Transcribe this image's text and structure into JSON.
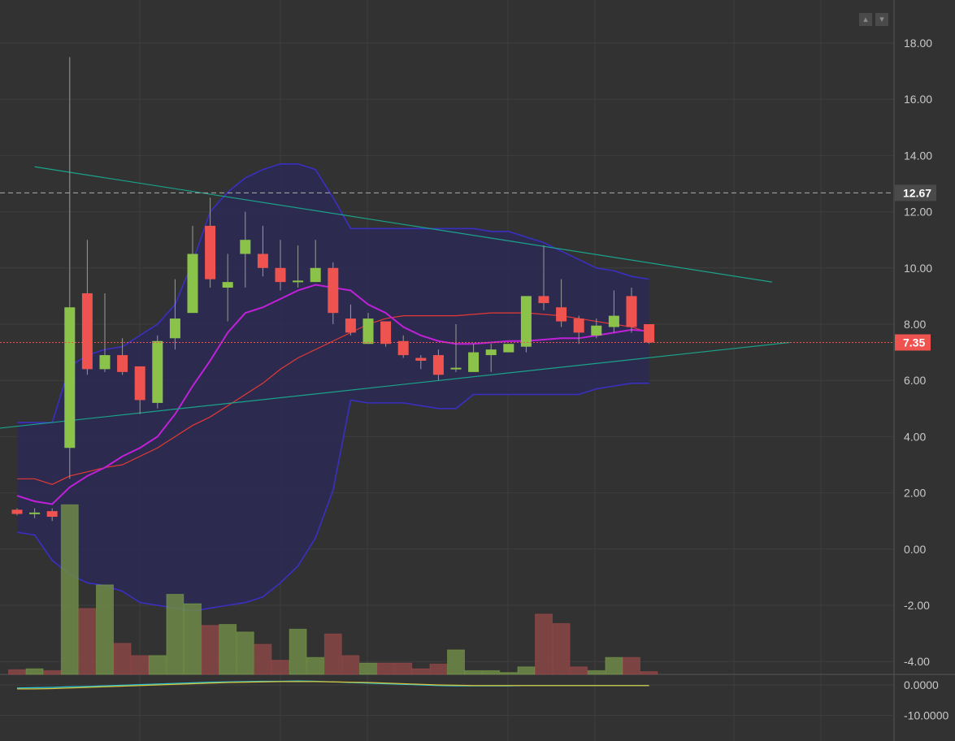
{
  "colors": {
    "background": "#323232",
    "grid": "#3e3e3e",
    "up_candle": "#8bc34a",
    "down_candle": "#ef5350",
    "bollinger_band": "#3a2fc0",
    "bollinger_fill": "#2c2a55",
    "ma_fast": "#c020d8",
    "ma_slow": "#e53935",
    "trendline": "#1aa38a",
    "ref_line": "#9e9e9e",
    "price_tag": "#ef5350",
    "ref_tag": "#e0e0e0"
  },
  "toolbar": {
    "btn1_icon": "up-arrow-icon",
    "btn2_icon": "down-arrow-icon"
  },
  "chart_data": {
    "type": "candlestick",
    "ylim": [
      -4.6,
      19.5
    ],
    "yticks": [
      "18.00",
      "16.00",
      "14.00",
      "12.00",
      "10.00",
      "8.00",
      "6.00",
      "4.00",
      "2.00",
      "0.00",
      "-2.00",
      "-4.00"
    ],
    "ytick_values": [
      18,
      16,
      14,
      12,
      10,
      8,
      6,
      4,
      2,
      0,
      -2,
      -4
    ],
    "reference_line": {
      "value": 12.67,
      "label": "12.67"
    },
    "last_price": {
      "value": 7.35,
      "label": "7.35"
    },
    "candles": [
      {
        "o": 1.4,
        "h": 1.45,
        "l": 1.2,
        "c": 1.25
      },
      {
        "o": 1.25,
        "h": 1.45,
        "l": 1.1,
        "c": 1.3
      },
      {
        "o": 1.35,
        "h": 1.45,
        "l": 1.0,
        "c": 1.15
      },
      {
        "o": 3.6,
        "h": 17.5,
        "l": 2.5,
        "c": 8.6
      },
      {
        "o": 9.1,
        "h": 11.0,
        "l": 6.2,
        "c": 6.4
      },
      {
        "o": 6.4,
        "h": 9.1,
        "l": 6.3,
        "c": 6.9
      },
      {
        "o": 6.9,
        "h": 7.5,
        "l": 6.2,
        "c": 6.3
      },
      {
        "o": 6.5,
        "h": 6.5,
        "l": 4.8,
        "c": 5.3
      },
      {
        "o": 5.2,
        "h": 7.6,
        "l": 5.0,
        "c": 7.4
      },
      {
        "o": 7.5,
        "h": 9.6,
        "l": 7.1,
        "c": 8.2
      },
      {
        "o": 8.4,
        "h": 11.5,
        "l": 8.4,
        "c": 10.5
      },
      {
        "o": 11.5,
        "h": 12.5,
        "l": 9.3,
        "c": 9.6
      },
      {
        "o": 9.3,
        "h": 10.5,
        "l": 8.1,
        "c": 9.5
      },
      {
        "o": 10.5,
        "h": 12.0,
        "l": 9.3,
        "c": 11.0
      },
      {
        "o": 10.5,
        "h": 11.5,
        "l": 9.7,
        "c": 10.0
      },
      {
        "o": 10.0,
        "h": 11.0,
        "l": 9.2,
        "c": 9.5
      },
      {
        "o": 9.5,
        "h": 10.8,
        "l": 9.3,
        "c": 9.55
      },
      {
        "o": 9.5,
        "h": 11.0,
        "l": 9.5,
        "c": 10.0
      },
      {
        "o": 10.0,
        "h": 10.2,
        "l": 8.0,
        "c": 8.4
      },
      {
        "o": 8.2,
        "h": 8.7,
        "l": 7.6,
        "c": 7.7
      },
      {
        "o": 7.3,
        "h": 8.4,
        "l": 7.3,
        "c": 8.2
      },
      {
        "o": 8.1,
        "h": 8.1,
        "l": 7.2,
        "c": 7.3
      },
      {
        "o": 7.4,
        "h": 7.6,
        "l": 6.8,
        "c": 6.9
      },
      {
        "o": 6.8,
        "h": 6.9,
        "l": 6.4,
        "c": 6.7
      },
      {
        "o": 6.9,
        "h": 7.1,
        "l": 6.0,
        "c": 6.2
      },
      {
        "o": 6.4,
        "h": 8.0,
        "l": 6.3,
        "c": 6.45
      },
      {
        "o": 6.3,
        "h": 7.3,
        "l": 6.3,
        "c": 7.0
      },
      {
        "o": 6.9,
        "h": 7.3,
        "l": 6.3,
        "c": 7.1
      },
      {
        "o": 7.0,
        "h": 7.3,
        "l": 7.0,
        "c": 7.3
      },
      {
        "o": 7.2,
        "h": 9.0,
        "l": 7.0,
        "c": 9.0
      },
      {
        "o": 9.0,
        "h": 10.8,
        "l": 8.5,
        "c": 8.75
      },
      {
        "o": 8.6,
        "h": 9.6,
        "l": 7.9,
        "c": 8.1
      },
      {
        "o": 8.2,
        "h": 8.3,
        "l": 7.3,
        "c": 7.7
      },
      {
        "o": 7.6,
        "h": 8.2,
        "l": 7.5,
        "c": 7.95
      },
      {
        "o": 7.9,
        "h": 9.2,
        "l": 7.7,
        "c": 8.3
      },
      {
        "o": 9.0,
        "h": 9.3,
        "l": 7.7,
        "c": 7.9
      },
      {
        "o": 8.0,
        "h": 8.0,
        "l": 7.3,
        "c": 7.35
      }
    ],
    "volume": [
      0.5,
      0.6,
      0.4,
      18,
      7,
      9.5,
      3.3,
      2.0,
      2.0,
      8.5,
      7.5,
      5.2,
      5.3,
      4.5,
      3.2,
      1.5,
      4.8,
      1.8,
      4.3,
      2.0,
      1.2,
      1.2,
      1.2,
      0.6,
      1.1,
      2.6,
      0.4,
      0.4,
      0.2,
      0.8,
      6.4,
      5.4,
      0.8,
      0.4,
      1.8,
      1.8,
      0.3
    ],
    "bb_upper": [
      4.5,
      4.5,
      4.5,
      6.5,
      6.9,
      7.1,
      7.2,
      7.6,
      8.0,
      8.7,
      10.2,
      12.0,
      12.7,
      13.2,
      13.5,
      13.7,
      13.7,
      13.5,
      12.5,
      11.4,
      11.4,
      11.4,
      11.4,
      11.4,
      11.4,
      11.4,
      11.4,
      11.3,
      11.3,
      11.1,
      10.9,
      10.6,
      10.3,
      10.0,
      9.9,
      9.7,
      9.6
    ],
    "bb_lower": [
      0.6,
      0.5,
      -0.4,
      -0.9,
      -1.2,
      -1.3,
      -1.5,
      -1.9,
      -2.0,
      -2.1,
      -2.2,
      -2.1,
      -2.0,
      -1.9,
      -1.7,
      -1.2,
      -0.6,
      0.4,
      2.1,
      5.3,
      5.2,
      5.2,
      5.2,
      5.1,
      5.0,
      5.0,
      5.5,
      5.5,
      5.5,
      5.5,
      5.5,
      5.5,
      5.5,
      5.7,
      5.8,
      5.9,
      5.9
    ],
    "ma_fast": [
      1.9,
      1.7,
      1.6,
      2.2,
      2.6,
      2.9,
      3.3,
      3.6,
      4.0,
      4.8,
      5.8,
      6.7,
      7.7,
      8.4,
      8.6,
      8.9,
      9.2,
      9.4,
      9.3,
      9.2,
      8.7,
      8.4,
      7.9,
      7.6,
      7.4,
      7.3,
      7.3,
      7.35,
      7.4,
      7.4,
      7.45,
      7.5,
      7.5,
      7.6,
      7.7,
      7.8,
      7.75
    ],
    "ma_slow": [
      2.5,
      2.5,
      2.3,
      2.6,
      2.75,
      2.9,
      3.0,
      3.3,
      3.6,
      4.0,
      4.4,
      4.7,
      5.1,
      5.5,
      5.9,
      6.4,
      6.8,
      7.1,
      7.4,
      7.7,
      8.0,
      8.2,
      8.3,
      8.3,
      8.3,
      8.3,
      8.35,
      8.4,
      8.4,
      8.4,
      8.35,
      8.3,
      8.2,
      8.1,
      8.0,
      7.9,
      7.7
    ],
    "trendlines": [
      {
        "from": [
          1,
          13.6
        ],
        "to": [
          43,
          9.5
        ]
      },
      {
        "from": [
          -1,
          4.3
        ],
        "to": [
          44,
          7.35
        ]
      }
    ],
    "oscillator": {
      "yticks": [
        "0.0000",
        "-10.0000"
      ],
      "ytick_values": [
        0,
        -10
      ],
      "ylim": [
        -14,
        3
      ],
      "line1": [
        -1.0,
        -0.9,
        -0.8,
        -0.6,
        -0.5,
        -0.3,
        -0.1,
        0.1,
        0.3,
        0.5,
        0.7,
        0.9,
        1.0,
        1.1,
        1.2,
        1.2,
        1.3,
        1.2,
        1.0,
        0.8,
        0.6,
        0.4,
        0.2,
        0.0,
        -0.2,
        -0.3,
        -0.3,
        -0.3,
        -0.3,
        -0.2,
        -0.2,
        -0.2,
        -0.2,
        -0.2,
        -0.2,
        -0.2,
        -0.2
      ],
      "line2": [
        -1.3,
        -1.3,
        -1.2,
        -1.0,
        -0.8,
        -0.6,
        -0.4,
        -0.2,
        0.0,
        0.2,
        0.4,
        0.6,
        0.8,
        0.9,
        1.0,
        1.1,
        1.1,
        1.1,
        1.0,
        0.9,
        0.8,
        0.6,
        0.4,
        0.2,
        0.0,
        -0.1,
        -0.2,
        -0.2,
        -0.2,
        -0.2,
        -0.2,
        -0.2,
        -0.2,
        -0.2,
        -0.2,
        -0.2,
        -0.2
      ]
    }
  }
}
